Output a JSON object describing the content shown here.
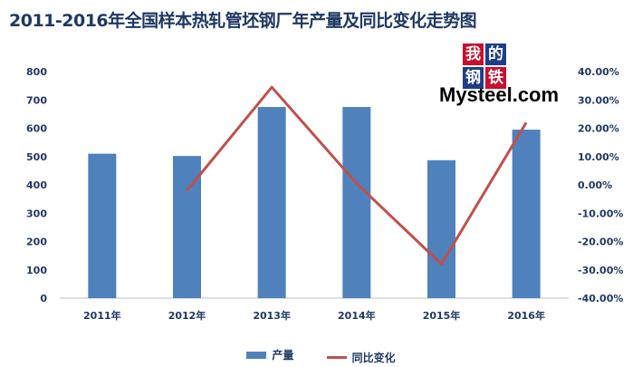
{
  "colors": {
    "bar": "#4f81bd",
    "line": "#c0504d",
    "text": "#1f3864",
    "axis": "#bfbfbf"
  },
  "logo": {
    "chars": [
      "我",
      "的",
      "钢",
      "铁"
    ],
    "text": "Mysteel.com"
  },
  "chart_data": {
    "type": "bar",
    "title": "2011-2016年全国样本热轧管坯钢厂年产量及同比变化走势图",
    "categories": [
      "2011年",
      "2012年",
      "2013年",
      "2014年",
      "2015年",
      "2016年"
    ],
    "ylim": [
      0,
      800
    ],
    "y_ticks": [
      "800",
      "700",
      "600",
      "500",
      "400",
      "300",
      "200",
      "100",
      "0"
    ],
    "y2lim": [
      -40,
      40
    ],
    "y2_ticks": [
      "40.00%",
      "30.00%",
      "20.00%",
      "10.00%",
      "0.00%",
      "-10.00%",
      "-20.00%",
      "-30.00%",
      "-40.00%"
    ],
    "series": [
      {
        "name": "产量",
        "type": "bar",
        "axis": "left",
        "values": [
          510,
          502,
          675,
          675,
          487,
          595
        ]
      },
      {
        "name": "同比变化",
        "type": "line",
        "axis": "right",
        "values": [
          null,
          -2,
          34.5,
          0.5,
          -28,
          22
        ]
      }
    ],
    "legend": "bottom",
    "grid": false
  }
}
